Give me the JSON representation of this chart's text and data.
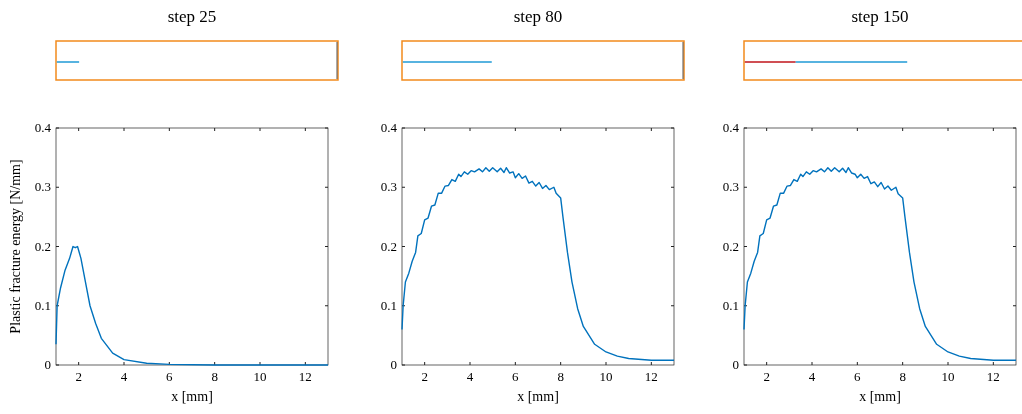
{
  "chart_data": [
    {
      "type": "line",
      "title": "step 25",
      "xlabel": "x [mm]",
      "ylabel": "Plastic fracture energy [N/mm]",
      "xlim": [
        1,
        13
      ],
      "ylim": [
        0,
        0.4
      ],
      "xticks": [
        2,
        4,
        6,
        8,
        10,
        12
      ],
      "yticks": [
        0,
        0.1,
        0.2,
        0.3,
        0.4
      ],
      "grid": false,
      "x": [
        1.0,
        1.05,
        1.2,
        1.4,
        1.6,
        1.75,
        1.85,
        1.95,
        2.1,
        2.3,
        2.5,
        2.75,
        3.0,
        3.5,
        4.0,
        5.0,
        6.0,
        8.0,
        13.0
      ],
      "series": [
        {
          "color": "#0072bd",
          "values": [
            0.035,
            0.1,
            0.13,
            0.16,
            0.18,
            0.2,
            0.198,
            0.2,
            0.18,
            0.14,
            0.1,
            0.07,
            0.045,
            0.02,
            0.009,
            0.003,
            0.001,
            0,
            0
          ]
        }
      ]
    },
    {
      "type": "line",
      "title": "step 80",
      "xlabel": "x [mm]",
      "xlim": [
        1,
        13
      ],
      "ylim": [
        0,
        0.4
      ],
      "xticks": [
        2,
        4,
        6,
        8,
        10,
        12
      ],
      "yticks": [
        0,
        0.1,
        0.2,
        0.3,
        0.4
      ],
      "grid": false,
      "x": [
        1.0,
        1.05,
        1.15,
        1.3,
        1.45,
        1.6,
        1.7,
        1.85,
        2.0,
        2.15,
        2.3,
        2.45,
        2.6,
        2.75,
        2.9,
        3.05,
        3.2,
        3.35,
        3.5,
        3.6,
        3.75,
        3.9,
        4.05,
        4.2,
        4.4,
        4.55,
        4.7,
        4.85,
        5.0,
        5.2,
        5.35,
        5.5,
        5.6,
        5.75,
        5.9,
        6.0,
        6.15,
        6.3,
        6.45,
        6.6,
        6.75,
        6.9,
        7.05,
        7.2,
        7.35,
        7.5,
        7.7,
        7.8,
        8.0,
        8.1,
        8.3,
        8.5,
        8.75,
        9.0,
        9.5,
        10.0,
        10.5,
        11.0,
        12.0,
        13.0
      ],
      "series": [
        {
          "color": "#0072bd",
          "values": [
            0.06,
            0.1,
            0.14,
            0.155,
            0.175,
            0.19,
            0.218,
            0.222,
            0.245,
            0.248,
            0.268,
            0.27,
            0.29,
            0.29,
            0.302,
            0.303,
            0.313,
            0.31,
            0.322,
            0.318,
            0.326,
            0.322,
            0.328,
            0.326,
            0.331,
            0.326,
            0.333,
            0.327,
            0.333,
            0.326,
            0.332,
            0.325,
            0.333,
            0.324,
            0.326,
            0.316,
            0.323,
            0.315,
            0.319,
            0.307,
            0.31,
            0.302,
            0.308,
            0.298,
            0.303,
            0.296,
            0.3,
            0.29,
            0.282,
            0.25,
            0.19,
            0.14,
            0.095,
            0.065,
            0.035,
            0.022,
            0.015,
            0.011,
            0.008,
            0.008
          ]
        }
      ]
    },
    {
      "type": "line",
      "title": "step 150",
      "xlabel": "x [mm]",
      "xlim": [
        1,
        13
      ],
      "ylim": [
        0,
        0.4
      ],
      "xticks": [
        2,
        4,
        6,
        8,
        10,
        12
      ],
      "yticks": [
        0,
        0.1,
        0.2,
        0.3,
        0.4
      ],
      "grid": false,
      "x": [
        1.0,
        1.05,
        1.15,
        1.3,
        1.45,
        1.6,
        1.7,
        1.85,
        2.0,
        2.15,
        2.3,
        2.45,
        2.6,
        2.75,
        2.9,
        3.05,
        3.2,
        3.35,
        3.5,
        3.6,
        3.75,
        3.9,
        4.05,
        4.2,
        4.4,
        4.55,
        4.7,
        4.85,
        5.0,
        5.2,
        5.35,
        5.5,
        5.6,
        5.75,
        5.9,
        6.0,
        6.15,
        6.3,
        6.45,
        6.6,
        6.75,
        6.9,
        7.05,
        7.2,
        7.35,
        7.5,
        7.7,
        7.8,
        8.0,
        8.1,
        8.3,
        8.5,
        8.75,
        9.0,
        9.5,
        10.0,
        10.5,
        11.0,
        12.0,
        13.0
      ],
      "series": [
        {
          "color": "#0072bd",
          "values": [
            0.06,
            0.1,
            0.14,
            0.155,
            0.175,
            0.19,
            0.218,
            0.222,
            0.245,
            0.248,
            0.268,
            0.27,
            0.29,
            0.29,
            0.302,
            0.303,
            0.313,
            0.31,
            0.322,
            0.318,
            0.326,
            0.322,
            0.328,
            0.326,
            0.331,
            0.326,
            0.333,
            0.327,
            0.333,
            0.326,
            0.332,
            0.325,
            0.333,
            0.324,
            0.322,
            0.316,
            0.322,
            0.315,
            0.318,
            0.306,
            0.309,
            0.301,
            0.308,
            0.297,
            0.302,
            0.295,
            0.3,
            0.289,
            0.282,
            0.25,
            0.19,
            0.14,
            0.095,
            0.065,
            0.035,
            0.022,
            0.015,
            0.011,
            0.008,
            0.008
          ]
        }
      ]
    }
  ]
}
